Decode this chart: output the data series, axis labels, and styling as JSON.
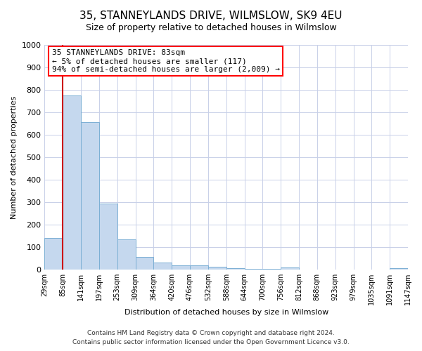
{
  "title": "35, STANNEYLANDS DRIVE, WILMSLOW, SK9 4EU",
  "subtitle": "Size of property relative to detached houses in Wilmslow",
  "xlabel": "Distribution of detached houses by size in Wilmslow",
  "ylabel": "Number of detached properties",
  "bar_values": [
    140,
    775,
    655,
    295,
    135,
    57,
    32,
    20,
    18,
    12,
    8,
    5,
    3,
    10,
    2,
    1,
    1,
    1,
    1,
    8
  ],
  "bin_labels": [
    "29sqm",
    "85sqm",
    "141sqm",
    "197sqm",
    "253sqm",
    "309sqm",
    "364sqm",
    "420sqm",
    "476sqm",
    "532sqm",
    "588sqm",
    "644sqm",
    "700sqm",
    "756sqm",
    "812sqm",
    "868sqm",
    "923sqm",
    "979sqm",
    "1035sqm",
    "1091sqm",
    "1147sqm"
  ],
  "bar_color": "#c5d8ee",
  "bar_edge_color": "#7bafd4",
  "marker_x_label": "85sqm",
  "marker_color": "#cc0000",
  "ylim": [
    0,
    1000
  ],
  "yticks": [
    0,
    100,
    200,
    300,
    400,
    500,
    600,
    700,
    800,
    900,
    1000
  ],
  "annotation_title": "35 STANNEYLANDS DRIVE: 83sqm",
  "annotation_line1": "← 5% of detached houses are smaller (117)",
  "annotation_line2": "94% of semi-detached houses are larger (2,009) →",
  "footer_line1": "Contains HM Land Registry data © Crown copyright and database right 2024.",
  "footer_line2": "Contains public sector information licensed under the Open Government Licence v3.0.",
  "background_color": "#ffffff",
  "grid_color": "#c8d0e8",
  "title_fontsize": 11,
  "subtitle_fontsize": 9,
  "axis_label_fontsize": 8,
  "tick_fontsize": 7,
  "annotation_fontsize": 8,
  "footer_fontsize": 6.5
}
